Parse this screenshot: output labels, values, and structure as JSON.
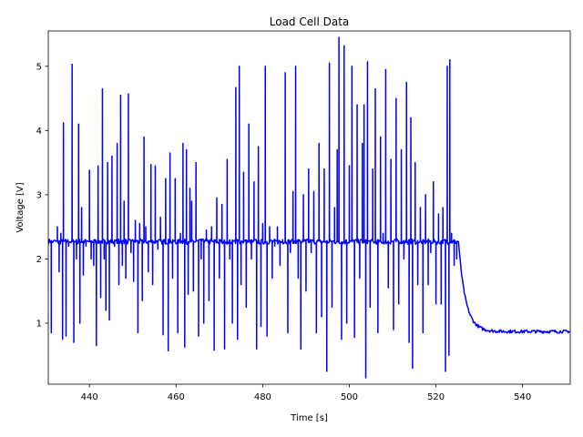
{
  "chart_data": {
    "type": "line",
    "title": "Load Cell Data",
    "xlabel": "Time [s]",
    "ylabel": "Voltage [V]",
    "xlim": [
      430.5,
      551
    ],
    "ylim": [
      0.05,
      5.55
    ],
    "xticks": [
      440,
      460,
      480,
      500,
      520,
      540
    ],
    "yticks": [
      1,
      2,
      3,
      4,
      5
    ],
    "grid": false,
    "legend": "none",
    "line_color": "#0000ff",
    "series": [
      {
        "baseline": 2.27,
        "spikes": [
          [
            431.2,
            0.85
          ],
          [
            432.6,
            2.5
          ],
          [
            433.0,
            1.8
          ],
          [
            433.4,
            2.4
          ],
          [
            433.8,
            0.75
          ],
          [
            434.0,
            4.12
          ],
          [
            434.6,
            0.8
          ],
          [
            435.2,
            2.2
          ],
          [
            436.0,
            5.03
          ],
          [
            436.4,
            0.7
          ],
          [
            437.0,
            2.0
          ],
          [
            437.5,
            4.1
          ],
          [
            437.8,
            1.0
          ],
          [
            438.2,
            2.8
          ],
          [
            438.6,
            1.75
          ],
          [
            439.2,
            2.2
          ],
          [
            440.0,
            3.38
          ],
          [
            440.4,
            2.0
          ],
          [
            441.0,
            1.9
          ],
          [
            441.6,
            0.65
          ],
          [
            442.0,
            3.45
          ],
          [
            442.6,
            1.4
          ],
          [
            443.0,
            4.65
          ],
          [
            443.4,
            2.0
          ],
          [
            443.8,
            1.2
          ],
          [
            444.2,
            3.5
          ],
          [
            444.6,
            1.05
          ],
          [
            445.2,
            3.6
          ],
          [
            445.8,
            2.2
          ],
          [
            446.4,
            3.8
          ],
          [
            446.8,
            1.6
          ],
          [
            447.2,
            4.55
          ],
          [
            447.6,
            1.9
          ],
          [
            448.0,
            2.9
          ],
          [
            448.4,
            1.7
          ],
          [
            449.0,
            4.57
          ],
          [
            449.6,
            2.1
          ],
          [
            450.2,
            1.65
          ],
          [
            450.6,
            2.6
          ],
          [
            451.2,
            0.85
          ],
          [
            451.6,
            2.55
          ],
          [
            452.2,
            1.35
          ],
          [
            452.6,
            3.9
          ],
          [
            453.0,
            2.5
          ],
          [
            453.6,
            1.8
          ],
          [
            454.2,
            3.47
          ],
          [
            454.6,
            1.6
          ],
          [
            455.2,
            3.45
          ],
          [
            455.8,
            2.15
          ],
          [
            456.4,
            2.65
          ],
          [
            457.0,
            0.82
          ],
          [
            457.6,
            3.25
          ],
          [
            458.2,
            0.57
          ],
          [
            458.6,
            3.65
          ],
          [
            459.2,
            1.7
          ],
          [
            459.8,
            3.25
          ],
          [
            460.4,
            0.85
          ],
          [
            461.0,
            2.4
          ],
          [
            461.6,
            3.8
          ],
          [
            462.0,
            0.63
          ],
          [
            462.4,
            3.7
          ],
          [
            462.8,
            1.45
          ],
          [
            463.2,
            3.1
          ],
          [
            463.6,
            2.9
          ],
          [
            464.0,
            1.5
          ],
          [
            464.6,
            3.5
          ],
          [
            465.2,
            0.8
          ],
          [
            465.8,
            2.0
          ],
          [
            466.4,
            1.0
          ],
          [
            467.0,
            2.45
          ],
          [
            467.6,
            1.35
          ],
          [
            468.2,
            2.5
          ],
          [
            468.8,
            0.58
          ],
          [
            469.4,
            2.95
          ],
          [
            470.0,
            1.7
          ],
          [
            470.6,
            2.85
          ],
          [
            471.2,
            0.6
          ],
          [
            471.8,
            3.55
          ],
          [
            472.4,
            2.0
          ],
          [
            473.0,
            1.0
          ],
          [
            473.8,
            4.67
          ],
          [
            474.2,
            0.75
          ],
          [
            474.6,
            5.0
          ],
          [
            475.0,
            1.6
          ],
          [
            475.6,
            3.35
          ],
          [
            476.2,
            1.25
          ],
          [
            476.8,
            4.1
          ],
          [
            477.4,
            2.0
          ],
          [
            478.0,
            3.2
          ],
          [
            478.6,
            0.6
          ],
          [
            479.0,
            3.75
          ],
          [
            479.6,
            0.95
          ],
          [
            480.0,
            2.55
          ],
          [
            480.6,
            5.0
          ],
          [
            481.0,
            0.8
          ],
          [
            481.6,
            2.5
          ],
          [
            482.2,
            1.7
          ],
          [
            482.8,
            2.2
          ],
          [
            483.4,
            2.5
          ],
          [
            484.0,
            1.9
          ],
          [
            484.6,
            2.3
          ],
          [
            485.2,
            4.9
          ],
          [
            485.8,
            0.85
          ],
          [
            486.4,
            2.1
          ],
          [
            487.0,
            3.05
          ],
          [
            487.6,
            5.0
          ],
          [
            488.2,
            1.7
          ],
          [
            488.8,
            0.6
          ],
          [
            489.4,
            3.0
          ],
          [
            490.0,
            1.5
          ],
          [
            490.6,
            3.4
          ],
          [
            491.2,
            2.1
          ],
          [
            491.8,
            3.05
          ],
          [
            492.4,
            0.85
          ],
          [
            493.0,
            3.8
          ],
          [
            493.6,
            1.1
          ],
          [
            494.2,
            3.4
          ],
          [
            494.8,
            0.25
          ],
          [
            495.4,
            5.05
          ],
          [
            496.0,
            1.25
          ],
          [
            496.6,
            2.8
          ],
          [
            497.2,
            3.7
          ],
          [
            497.6,
            5.45
          ],
          [
            498.2,
            0.75
          ],
          [
            498.8,
            5.32
          ],
          [
            499.4,
            1.0
          ],
          [
            500.0,
            3.45
          ],
          [
            500.6,
            5.0
          ],
          [
            501.2,
            0.78
          ],
          [
            501.8,
            4.4
          ],
          [
            502.4,
            1.7
          ],
          [
            503.0,
            3.8
          ],
          [
            503.4,
            4.4
          ],
          [
            503.8,
            0.15
          ],
          [
            504.2,
            5.07
          ],
          [
            504.8,
            1.25
          ],
          [
            505.4,
            3.4
          ],
          [
            506.0,
            4.65
          ],
          [
            506.6,
            0.85
          ],
          [
            507.2,
            3.9
          ],
          [
            507.8,
            2.4
          ],
          [
            508.4,
            4.95
          ],
          [
            509.0,
            1.55
          ],
          [
            509.6,
            3.55
          ],
          [
            510.2,
            0.9
          ],
          [
            510.8,
            4.5
          ],
          [
            511.4,
            1.3
          ],
          [
            512.0,
            3.7
          ],
          [
            512.6,
            2.0
          ],
          [
            513.2,
            4.75
          ],
          [
            513.8,
            0.7
          ],
          [
            514.2,
            4.2
          ],
          [
            514.6,
            0.3
          ],
          [
            515.2,
            3.5
          ],
          [
            515.8,
            1.6
          ],
          [
            516.4,
            2.8
          ],
          [
            517.0,
            0.85
          ],
          [
            517.6,
            3.0
          ],
          [
            518.2,
            1.6
          ],
          [
            518.8,
            2.1
          ],
          [
            519.4,
            3.2
          ],
          [
            520.0,
            1.3
          ],
          [
            520.6,
            2.7
          ],
          [
            521.2,
            1.3
          ],
          [
            521.6,
            2.8
          ],
          [
            522.2,
            0.25
          ],
          [
            522.6,
            5.0
          ],
          [
            523.0,
            0.5
          ],
          [
            523.2,
            5.1
          ],
          [
            523.6,
            2.4
          ],
          [
            524.2,
            1.9
          ],
          [
            524.8,
            2.0
          ]
        ]
      }
    ]
  }
}
